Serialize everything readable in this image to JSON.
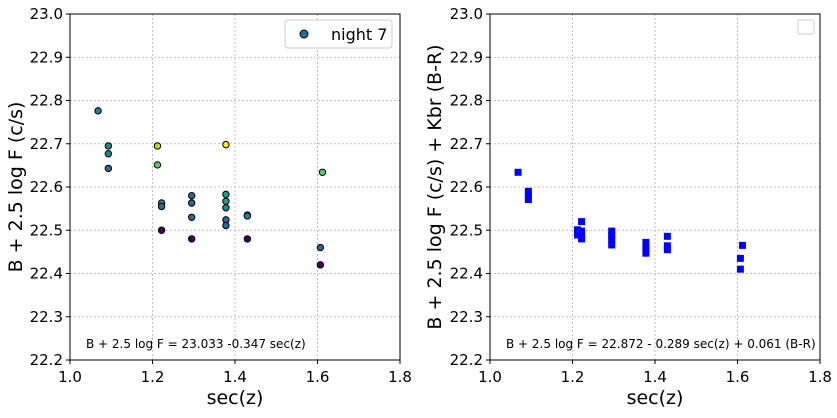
{
  "chart_data": [
    {
      "type": "scatter",
      "xlabel": "sec(z)",
      "ylabel": "B + 2.5 log F (c/s)",
      "xlim": [
        1.0,
        1.8
      ],
      "ylim": [
        22.2,
        23.0
      ],
      "xticks": [
        "1.0",
        "1.2",
        "1.4",
        "1.6",
        "1.8"
      ],
      "yticks": [
        "22.2",
        "22.3",
        "22.4",
        "22.5",
        "22.6",
        "22.7",
        "22.8",
        "22.9",
        "23.0"
      ],
      "grid": true,
      "legend": {
        "position": "top-right",
        "entries": [
          {
            "label": "night 7",
            "color": "#2f6b8e"
          }
        ]
      },
      "annotation": "B + 2.5 log F = 23.033  -0.347 sec(z)",
      "marker": "circle",
      "points": [
        {
          "x": 1.068,
          "y": 22.776,
          "color": "#26828e"
        },
        {
          "x": 1.093,
          "y": 22.695,
          "color": "#26828e"
        },
        {
          "x": 1.093,
          "y": 22.677,
          "color": "#26828e"
        },
        {
          "x": 1.093,
          "y": 22.643,
          "color": "#31688e"
        },
        {
          "x": 1.212,
          "y": 22.695,
          "color": "#b5de2b"
        },
        {
          "x": 1.212,
          "y": 22.651,
          "color": "#5ec962"
        },
        {
          "x": 1.222,
          "y": 22.563,
          "color": "#26828e"
        },
        {
          "x": 1.222,
          "y": 22.555,
          "color": "#31688e"
        },
        {
          "x": 1.222,
          "y": 22.5,
          "color": "#440154"
        },
        {
          "x": 1.295,
          "y": 22.58,
          "color": "#31688e"
        },
        {
          "x": 1.295,
          "y": 22.563,
          "color": "#31688e"
        },
        {
          "x": 1.295,
          "y": 22.53,
          "color": "#31688e"
        },
        {
          "x": 1.295,
          "y": 22.48,
          "color": "#440154"
        },
        {
          "x": 1.378,
          "y": 22.698,
          "color": "#fde725"
        },
        {
          "x": 1.378,
          "y": 22.583,
          "color": "#1f9e89"
        },
        {
          "x": 1.378,
          "y": 22.567,
          "color": "#1f9e89"
        },
        {
          "x": 1.378,
          "y": 22.552,
          "color": "#26828e"
        },
        {
          "x": 1.378,
          "y": 22.524,
          "color": "#31688e"
        },
        {
          "x": 1.378,
          "y": 22.511,
          "color": "#31688e"
        },
        {
          "x": 1.43,
          "y": 22.535,
          "color": "#31688e"
        },
        {
          "x": 1.43,
          "y": 22.533,
          "color": "#26828e"
        },
        {
          "x": 1.43,
          "y": 22.48,
          "color": "#440154"
        },
        {
          "x": 1.607,
          "y": 22.46,
          "color": "#31688e"
        },
        {
          "x": 1.607,
          "y": 22.42,
          "color": "#440154"
        },
        {
          "x": 1.612,
          "y": 22.634,
          "color": "#5ec962"
        }
      ]
    },
    {
      "type": "scatter",
      "xlabel": "sec(z)",
      "ylabel": "B + 2.5 log F (c/s) + Kbr (B-R)",
      "xlim": [
        1.0,
        1.8
      ],
      "ylim": [
        22.2,
        23.0
      ],
      "xticks": [
        "1.0",
        "1.2",
        "1.4",
        "1.6",
        "1.8"
      ],
      "yticks": [
        "22.2",
        "22.3",
        "22.4",
        "22.5",
        "22.6",
        "22.7",
        "22.8",
        "22.9",
        "23.0"
      ],
      "grid": true,
      "legend": {
        "position": "top-right",
        "entries": []
      },
      "annotation": "B + 2.5 log F = 22.872 - 0.289 sec(z) + 0.061 (B-R)",
      "marker": "square",
      "color": "#0000ff",
      "points": [
        {
          "x": 1.068,
          "y": 22.634
        },
        {
          "x": 1.093,
          "y": 22.59
        },
        {
          "x": 1.093,
          "y": 22.58
        },
        {
          "x": 1.093,
          "y": 22.571
        },
        {
          "x": 1.212,
          "y": 22.501
        },
        {
          "x": 1.212,
          "y": 22.489
        },
        {
          "x": 1.222,
          "y": 22.52
        },
        {
          "x": 1.222,
          "y": 22.498
        },
        {
          "x": 1.222,
          "y": 22.486
        },
        {
          "x": 1.222,
          "y": 22.48
        },
        {
          "x": 1.295,
          "y": 22.498
        },
        {
          "x": 1.295,
          "y": 22.488
        },
        {
          "x": 1.295,
          "y": 22.478
        },
        {
          "x": 1.295,
          "y": 22.466
        },
        {
          "x": 1.378,
          "y": 22.472
        },
        {
          "x": 1.378,
          "y": 22.463
        },
        {
          "x": 1.378,
          "y": 22.455
        },
        {
          "x": 1.378,
          "y": 22.447
        },
        {
          "x": 1.43,
          "y": 22.486
        },
        {
          "x": 1.43,
          "y": 22.464
        },
        {
          "x": 1.43,
          "y": 22.455
        },
        {
          "x": 1.607,
          "y": 22.435
        },
        {
          "x": 1.607,
          "y": 22.41
        },
        {
          "x": 1.612,
          "y": 22.465
        }
      ]
    }
  ]
}
